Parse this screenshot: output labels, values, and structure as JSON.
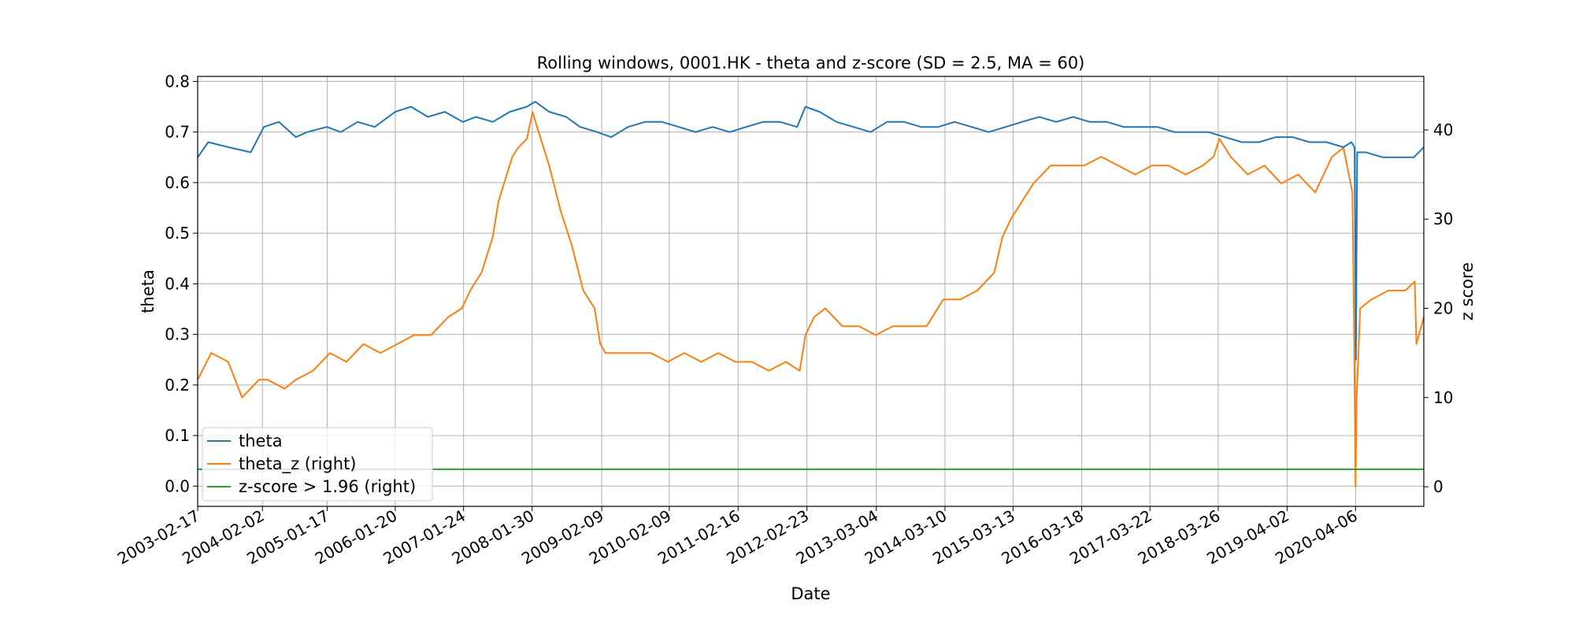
{
  "chart_data": {
    "type": "line",
    "title": "Rolling windows, 0001.HK - theta and z-score (SD = 2.5, MA = 60)",
    "xlabel": "Date",
    "ylabel": "theta",
    "ylabel_right": "z score",
    "x_ticks": [
      "2003-02-17",
      "2004-02-02",
      "2005-01-17",
      "2006-01-20",
      "2007-01-24",
      "2008-01-30",
      "2009-02-09",
      "2010-02-09",
      "2011-02-16",
      "2012-02-23",
      "2013-03-04",
      "2014-03-10",
      "2015-03-13",
      "2016-03-18",
      "2017-03-22",
      "2018-03-26",
      "2019-04-02",
      "2020-04-06"
    ],
    "xlim": [
      "2003-02-17",
      "2021-04-10"
    ],
    "ylim_left": [
      -0.04,
      0.81
    ],
    "yticks_left": [
      "0.0",
      "0.1",
      "0.2",
      "0.3",
      "0.4",
      "0.5",
      "0.6",
      "0.7",
      "0.8"
    ],
    "ylim_right": [
      -2.2,
      46
    ],
    "yticks_right": [
      "0",
      "10",
      "20",
      "30",
      "40"
    ],
    "grid": true,
    "legend_position": "lower-left",
    "colors": {
      "theta": "#1f77b4",
      "theta_z": "#ff7f0e",
      "threshold": "#2ca02c"
    },
    "series": [
      {
        "name": "theta",
        "axis": "left",
        "color": "#1f77b4",
        "x": [
          "2003-02-17",
          "2003-04-15",
          "2003-08-01",
          "2003-12-01",
          "2004-02-10",
          "2004-05-01",
          "2004-08-01",
          "2004-10-01",
          "2005-01-15",
          "2005-04-01",
          "2005-07-01",
          "2005-10-01",
          "2006-01-20",
          "2006-04-15",
          "2006-07-15",
          "2006-10-15",
          "2007-01-20",
          "2007-04-01",
          "2007-07-01",
          "2007-10-01",
          "2008-01-01",
          "2008-02-15",
          "2008-05-01",
          "2008-08-01",
          "2008-10-15",
          "2009-01-15",
          "2009-04-01",
          "2009-07-01",
          "2009-10-01",
          "2010-01-01",
          "2010-04-01",
          "2010-07-01",
          "2010-10-01",
          "2011-01-01",
          "2011-04-01",
          "2011-07-01",
          "2011-10-01",
          "2012-01-01",
          "2012-02-15",
          "2012-05-01",
          "2012-08-01",
          "2012-11-01",
          "2013-02-01",
          "2013-05-01",
          "2013-08-01",
          "2013-11-01",
          "2014-02-01",
          "2014-05-01",
          "2014-08-01",
          "2014-11-01",
          "2015-02-01",
          "2015-05-01",
          "2015-08-01",
          "2015-11-01",
          "2016-02-01",
          "2016-05-01",
          "2016-08-01",
          "2016-11-01",
          "2017-02-01",
          "2017-05-01",
          "2017-08-01",
          "2017-11-01",
          "2018-02-01",
          "2018-05-01",
          "2018-08-01",
          "2018-11-01",
          "2019-02-01",
          "2019-05-01",
          "2019-08-01",
          "2019-11-01",
          "2020-02-01",
          "2020-03-15",
          "2020-04-01",
          "2020-04-08",
          "2020-04-15",
          "2020-06-01",
          "2020-09-01",
          "2020-12-01",
          "2021-02-15",
          "2021-04-10"
        ],
        "values": [
          0.65,
          0.68,
          0.67,
          0.66,
          0.71,
          0.72,
          0.69,
          0.7,
          0.71,
          0.7,
          0.72,
          0.71,
          0.74,
          0.75,
          0.73,
          0.74,
          0.72,
          0.73,
          0.72,
          0.74,
          0.75,
          0.76,
          0.74,
          0.73,
          0.71,
          0.7,
          0.69,
          0.71,
          0.72,
          0.72,
          0.71,
          0.7,
          0.71,
          0.7,
          0.71,
          0.72,
          0.72,
          0.71,
          0.75,
          0.74,
          0.72,
          0.71,
          0.7,
          0.72,
          0.72,
          0.71,
          0.71,
          0.72,
          0.71,
          0.7,
          0.71,
          0.72,
          0.73,
          0.72,
          0.73,
          0.72,
          0.72,
          0.71,
          0.71,
          0.71,
          0.7,
          0.7,
          0.7,
          0.69,
          0.68,
          0.68,
          0.69,
          0.69,
          0.68,
          0.68,
          0.67,
          0.68,
          0.67,
          0.25,
          0.66,
          0.66,
          0.65,
          0.65,
          0.65,
          0.67
        ]
      },
      {
        "name": "theta_z (right)",
        "axis": "right",
        "color": "#ff7f0e",
        "x": [
          "2003-02-17",
          "2003-05-01",
          "2003-08-01",
          "2003-10-15",
          "2004-01-15",
          "2004-03-01",
          "2004-06-01",
          "2004-08-01",
          "2004-11-01",
          "2005-02-01",
          "2005-05-01",
          "2005-08-01",
          "2005-11-01",
          "2006-02-01",
          "2006-05-01",
          "2006-08-01",
          "2006-11-01",
          "2007-01-15",
          "2007-03-01",
          "2007-05-01",
          "2007-07-01",
          "2007-08-01",
          "2007-09-15",
          "2007-10-15",
          "2007-11-15",
          "2008-01-01",
          "2008-02-01",
          "2008-03-01",
          "2008-05-01",
          "2008-07-01",
          "2008-09-01",
          "2008-11-01",
          "2009-01-01",
          "2009-02-01",
          "2009-03-01",
          "2009-05-01",
          "2009-08-01",
          "2009-11-01",
          "2010-02-01",
          "2010-05-01",
          "2010-08-01",
          "2010-11-01",
          "2011-02-01",
          "2011-05-01",
          "2011-08-01",
          "2011-11-01",
          "2012-01-15",
          "2012-02-15",
          "2012-04-01",
          "2012-06-01",
          "2012-09-01",
          "2012-12-01",
          "2013-03-01",
          "2013-06-01",
          "2013-09-01",
          "2013-12-01",
          "2014-03-01",
          "2014-06-01",
          "2014-09-01",
          "2014-12-01",
          "2015-01-15",
          "2015-03-01",
          "2015-05-01",
          "2015-07-01",
          "2015-10-01",
          "2016-01-01",
          "2016-04-01",
          "2016-07-01",
          "2016-10-01",
          "2017-01-01",
          "2017-04-01",
          "2017-07-01",
          "2017-10-01",
          "2018-01-01",
          "2018-03-01",
          "2018-04-01",
          "2018-06-01",
          "2018-09-01",
          "2018-12-01",
          "2019-03-01",
          "2019-06-01",
          "2019-09-01",
          "2019-12-01",
          "2020-02-01",
          "2020-03-20",
          "2020-03-28",
          "2020-04-06",
          "2020-04-12",
          "2020-05-01",
          "2020-07-01",
          "2020-10-01",
          "2021-01-01",
          "2021-02-20",
          "2021-03-01",
          "2021-04-10"
        ],
        "values": [
          12,
          15,
          14,
          10,
          12,
          12,
          11,
          12,
          13,
          15,
          14,
          16,
          15,
          16,
          17,
          17,
          19,
          20,
          22,
          24,
          28,
          32,
          35,
          37,
          38,
          39,
          42,
          40,
          36,
          31,
          27,
          22,
          20,
          16,
          15,
          15,
          15,
          15,
          14,
          15,
          14,
          15,
          14,
          14,
          13,
          14,
          13,
          17,
          19,
          20,
          18,
          18,
          17,
          18,
          18,
          18,
          21,
          21,
          22,
          24,
          28,
          30,
          32,
          34,
          36,
          36,
          36,
          37,
          36,
          35,
          36,
          36,
          35,
          36,
          37,
          39,
          37,
          35,
          36,
          34,
          35,
          33,
          37,
          38,
          33,
          20,
          0,
          10,
          20,
          21,
          22,
          22,
          23,
          16,
          19
        ]
      },
      {
        "name": "z-score > 1.96 (right)",
        "axis": "right",
        "color": "#2ca02c",
        "x": [
          "2003-02-17",
          "2021-04-10"
        ],
        "values": [
          1.96,
          1.96
        ]
      }
    ]
  }
}
